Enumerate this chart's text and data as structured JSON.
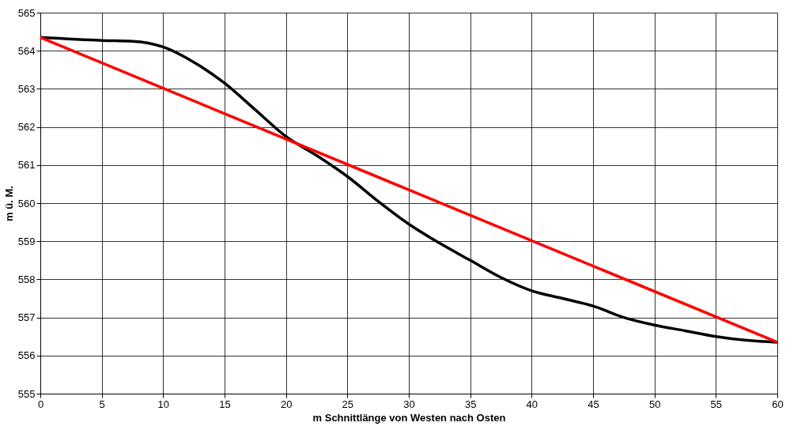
{
  "chart_data": {
    "type": "line",
    "xlabel": "m Schnittlänge von Westen nach Osten",
    "ylabel": "m ü. M.",
    "xlim": [
      0,
      60
    ],
    "xticks": [
      0,
      5,
      10,
      15,
      20,
      25,
      30,
      35,
      40,
      45,
      50,
      55,
      60
    ],
    "ylim": [
      555,
      565
    ],
    "yticks": [
      555,
      556,
      557,
      558,
      559,
      560,
      561,
      562,
      563,
      564,
      565
    ],
    "grid": true,
    "legend": false,
    "marker": "none",
    "line_style": "solid",
    "series": [
      {
        "color": "#000000",
        "x": [
          0,
          5,
          7.5,
          10,
          12.5,
          15,
          17.5,
          20,
          22.5,
          25,
          27.5,
          30,
          32.5,
          35,
          37.5,
          40,
          42.5,
          45,
          47.5,
          50,
          52.5,
          55,
          57.5,
          60
        ],
        "values": [
          564.35,
          564.27,
          564.25,
          564.1,
          563.7,
          563.15,
          562.45,
          561.75,
          561.25,
          560.7,
          560.05,
          559.45,
          558.95,
          558.5,
          558.05,
          557.7,
          557.5,
          557.3,
          557.0,
          556.8,
          556.65,
          556.5,
          556.4,
          556.35
        ]
      },
      {
        "color": "#ff0000",
        "x": [
          0,
          60
        ],
        "values": [
          564.35,
          556.35
        ]
      }
    ]
  }
}
